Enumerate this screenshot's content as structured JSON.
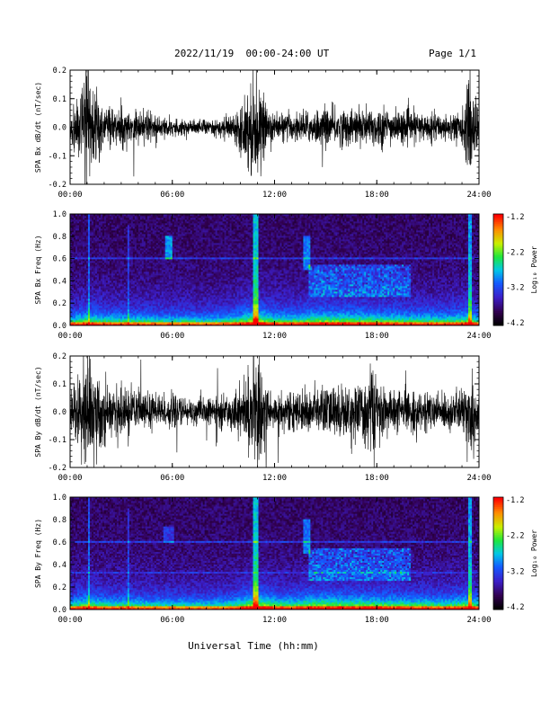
{
  "header": {
    "title": "2022/11/19  00:00-24:00 UT",
    "page": "Page 1/1"
  },
  "chart_data": [
    {
      "type": "line",
      "name": "panel-bx",
      "ylabel": "SPA Bx dB/dt (nT/sec)",
      "xlim": [
        0,
        24
      ],
      "ylim": [
        -0.2,
        0.2
      ],
      "xticks": [
        "00:00",
        "06:00",
        "12:00",
        "18:00",
        "24:00"
      ],
      "yticks": [
        "-0.2",
        "-0.1",
        "0.0",
        "0.1",
        "0.2"
      ],
      "envelope": {
        "hours": [
          0,
          1,
          1.5,
          2,
          3,
          4,
          5,
          6,
          7,
          8,
          9,
          9.8,
          10.3,
          10.8,
          11.2,
          11.7,
          12,
          13,
          14,
          15,
          16,
          17,
          18,
          19,
          20,
          21,
          22,
          23,
          23.5,
          24
        ],
        "amplitude": [
          0.06,
          0.19,
          0.14,
          0.08,
          0.07,
          0.06,
          0.05,
          0.035,
          0.03,
          0.03,
          0.035,
          0.06,
          0.13,
          0.2,
          0.12,
          0.07,
          0.05,
          0.05,
          0.06,
          0.07,
          0.07,
          0.07,
          0.08,
          0.06,
          0.06,
          0.05,
          0.05,
          0.06,
          0.2,
          0.06
        ]
      }
    },
    {
      "type": "heatmap",
      "name": "panel-bx-spectrogram",
      "ylabel": "SPA Bx Freq (Hz)",
      "xlim": [
        0,
        24
      ],
      "ylim": [
        0,
        1
      ],
      "xticks": [
        "00:00",
        "06:00",
        "12:00",
        "18:00",
        "24:00"
      ],
      "yticks": [
        "0.0",
        "0.2",
        "0.4",
        "0.6",
        "0.8",
        "1.0"
      ],
      "colorbar": {
        "label": "Log₁₀ Power",
        "range": [
          -4.2,
          -1.2
        ],
        "ticks": [
          "-1.2",
          "-2.2",
          "-3.2",
          "-4.2"
        ]
      }
    },
    {
      "type": "line",
      "name": "panel-by",
      "ylabel": "SPA By dB/dt (nT/sec)",
      "xlim": [
        0,
        24
      ],
      "ylim": [
        -0.2,
        0.2
      ],
      "xticks": [
        "00:00",
        "06:00",
        "12:00",
        "18:00",
        "24:00"
      ],
      "yticks": [
        "-0.2",
        "-0.1",
        "0.0",
        "0.1",
        "0.2"
      ],
      "envelope": {
        "hours": [
          0,
          1,
          1.5,
          2,
          3,
          4,
          5,
          6,
          7,
          8,
          9,
          9.8,
          10.3,
          10.8,
          11.2,
          11.7,
          12,
          13,
          14,
          15,
          16,
          17,
          17.7,
          18,
          19,
          20,
          21,
          22,
          23,
          23.6,
          24
        ],
        "amplitude": [
          0.08,
          0.2,
          0.15,
          0.1,
          0.09,
          0.08,
          0.07,
          0.06,
          0.05,
          0.05,
          0.06,
          0.08,
          0.12,
          0.2,
          0.2,
          0.09,
          0.07,
          0.07,
          0.08,
          0.1,
          0.1,
          0.1,
          0.2,
          0.1,
          0.08,
          0.08,
          0.07,
          0.07,
          0.08,
          0.2,
          0.08
        ]
      }
    },
    {
      "type": "heatmap",
      "name": "panel-by-spectrogram",
      "ylabel": "SPA By Freq (Hz)",
      "xlim": [
        0,
        24
      ],
      "ylim": [
        0,
        1
      ],
      "xticks": [
        "00:00",
        "06:00",
        "12:00",
        "18:00",
        "24:00"
      ],
      "yticks": [
        "0.0",
        "0.2",
        "0.4",
        "0.6",
        "0.8",
        "1.0"
      ],
      "colorbar": {
        "label": "Log₁₀ Power",
        "range": [
          -4.2,
          -1.2
        ],
        "ticks": [
          "-1.2",
          "-2.2",
          "-3.2",
          "-4.2"
        ]
      }
    }
  ],
  "xlabel": "Universal Time (hh:mm)"
}
